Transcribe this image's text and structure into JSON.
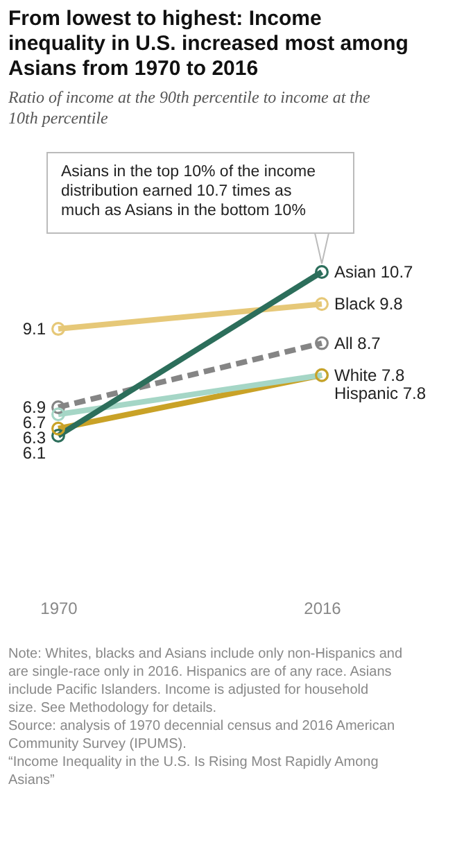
{
  "chart_data": {
    "type": "line",
    "title": "From lowest to highest: Income inequality in U.S. increased most among Asians from 1970 to 2016",
    "subtitle": "Ratio of income at the 90th percentile to income at the 10th percentile",
    "categories": [
      "1970",
      "2016"
    ],
    "series": [
      {
        "color": "#2c6e5b",
        "values": [
          6.1,
          10.7
        ],
        "value_labels": [
          "6.1",
          "Asian 10.7"
        ]
      },
      {
        "color": "#e6c878",
        "values": [
          9.1,
          9.8
        ],
        "value_labels": [
          "9.1",
          "Black 9.8"
        ]
      },
      {
        "color": "#858585",
        "values": [
          6.9,
          8.7
        ],
        "value_labels": [
          "6.9",
          "All 8.7"
        ],
        "line_style": "dashed"
      },
      {
        "color": "#a5d6c6",
        "values": [
          6.7,
          7.8
        ],
        "value_labels": [
          "6.7",
          "White 7.8"
        ]
      },
      {
        "color": "#c9a227",
        "values": [
          6.3,
          7.8
        ],
        "value_labels": [
          "6.3",
          "Hispanic 7.8"
        ]
      }
    ],
    "tick_labels": "x",
    "grid": false,
    "marker": "circle",
    "line_style": "solid",
    "annotations": [
      "Asians in the top 10% of the income distribution earned 10.7 times as much as Asians in the bottom 10%",
      "Note: Whites, blacks and Asians include only non-Hispanics and are single-race only in 2016. Hispanics are of any race. Asians include Pacific Islanders. Income is adjusted for household size. See Methodology for details.",
      "Source: analysis of 1970 decennial census and 2016 American Community Survey (IPUMS).",
      "“Income Inequality in the U.S. Is Rising Most Rapidly Among Asians”"
    ]
  }
}
